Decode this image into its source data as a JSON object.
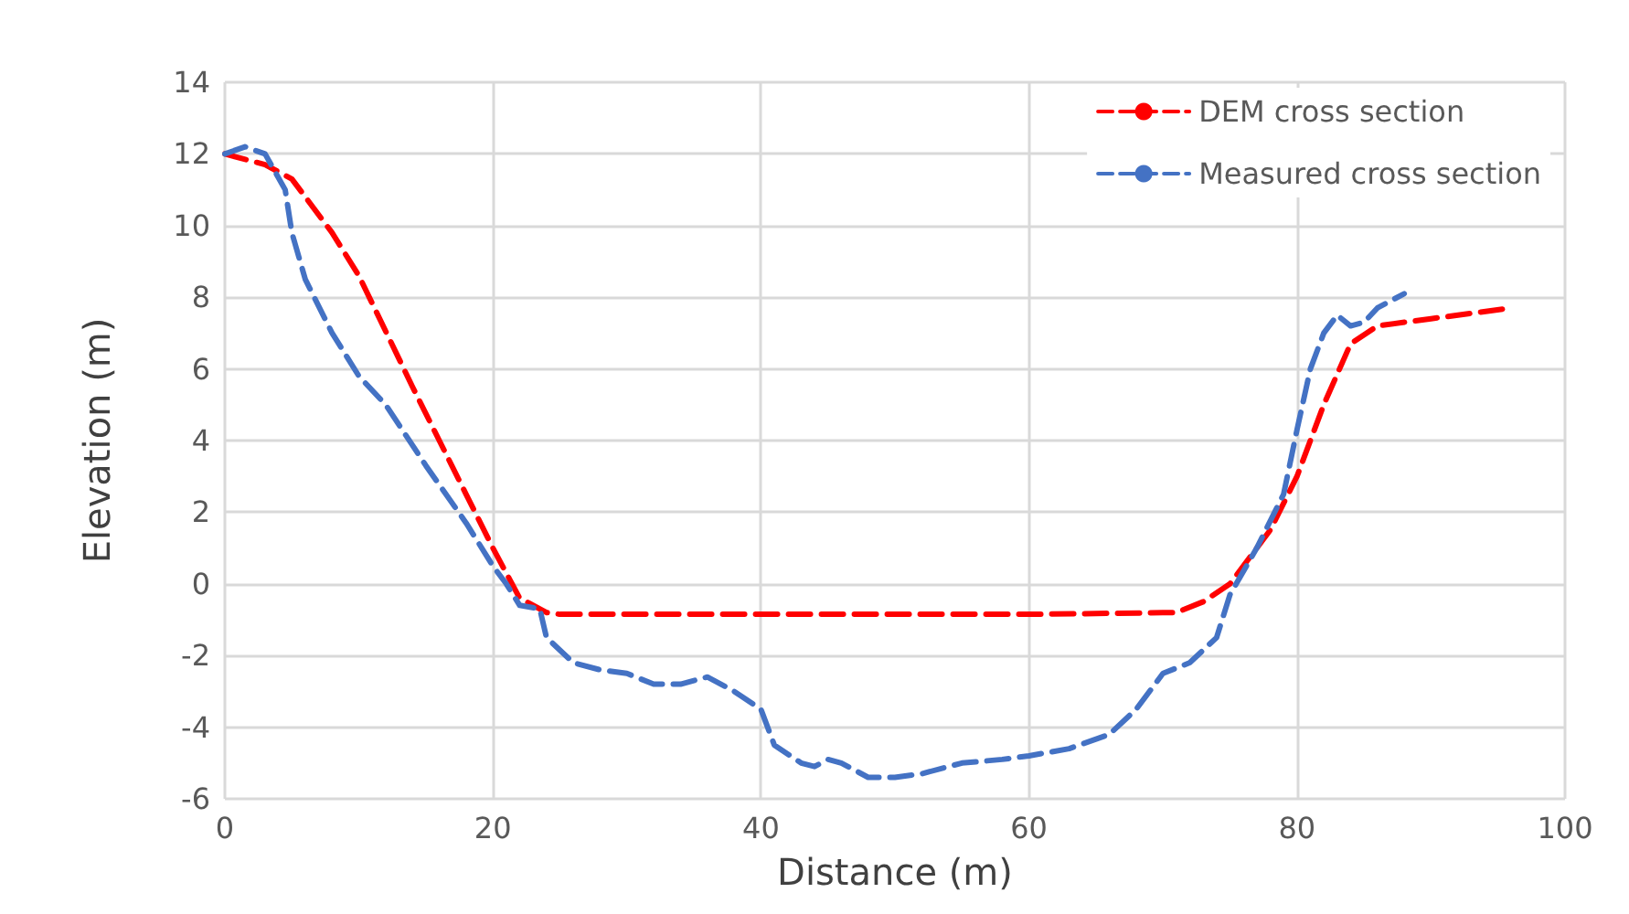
{
  "chart_data": {
    "type": "line",
    "xlabel": "Distance (m)",
    "ylabel": "Elevation (m)",
    "xlim": [
      0,
      100
    ],
    "xticks": [
      0,
      20,
      40,
      60,
      80,
      100
    ],
    "ylim": [
      -6,
      14
    ],
    "yticks": [
      -6,
      -4,
      -2,
      0,
      2,
      4,
      6,
      8,
      10,
      12,
      14
    ],
    "grid": true,
    "legend": "top right",
    "line_style": "dashed",
    "marker": "none",
    "series": [
      {
        "name": "DEM cross section",
        "color": "#ff0000",
        "x": [
          0,
          3,
          5,
          8,
          10,
          14,
          18,
          20,
          22,
          24,
          25,
          40,
          60,
          71,
          73,
          75,
          78,
          80,
          82,
          84,
          86,
          90,
          96
        ],
        "values": [
          12,
          11.7,
          11.3,
          9.8,
          8.6,
          5.5,
          2.5,
          1,
          -0.4,
          -0.8,
          -0.85,
          -0.85,
          -0.85,
          -0.8,
          -0.5,
          0,
          1.5,
          3,
          5,
          6.7,
          7.2,
          7.4,
          7.7
        ]
      },
      {
        "name": "Measured cross section",
        "color": "#4472c4",
        "x": [
          0,
          1.5,
          3,
          4.5,
          5,
          6,
          8,
          10,
          12,
          15,
          18,
          20,
          21,
          22,
          23.5,
          24,
          26,
          28,
          30,
          32,
          34,
          36,
          38,
          40,
          41,
          43,
          44,
          45,
          46,
          48,
          50,
          52,
          55,
          58,
          60,
          63,
          66,
          68,
          70,
          72,
          74,
          75,
          77,
          79,
          80,
          81,
          82,
          83,
          84,
          85,
          86,
          88
        ],
        "values": [
          12,
          12.2,
          12,
          11,
          9.8,
          8.5,
          7,
          5.8,
          5,
          3.3,
          1.7,
          0.5,
          0,
          -0.6,
          -0.7,
          -1.5,
          -2.2,
          -2.4,
          -2.5,
          -2.8,
          -2.8,
          -2.6,
          -3,
          -3.5,
          -4.5,
          -5,
          -5.1,
          -4.9,
          -5,
          -5.4,
          -5.4,
          -5.3,
          -5,
          -4.9,
          -4.8,
          -4.6,
          -4.2,
          -3.5,
          -2.5,
          -2.2,
          -1.5,
          -0.3,
          1,
          2.5,
          4.3,
          6,
          7,
          7.5,
          7.2,
          7.3,
          7.7,
          8.1
        ]
      }
    ]
  }
}
